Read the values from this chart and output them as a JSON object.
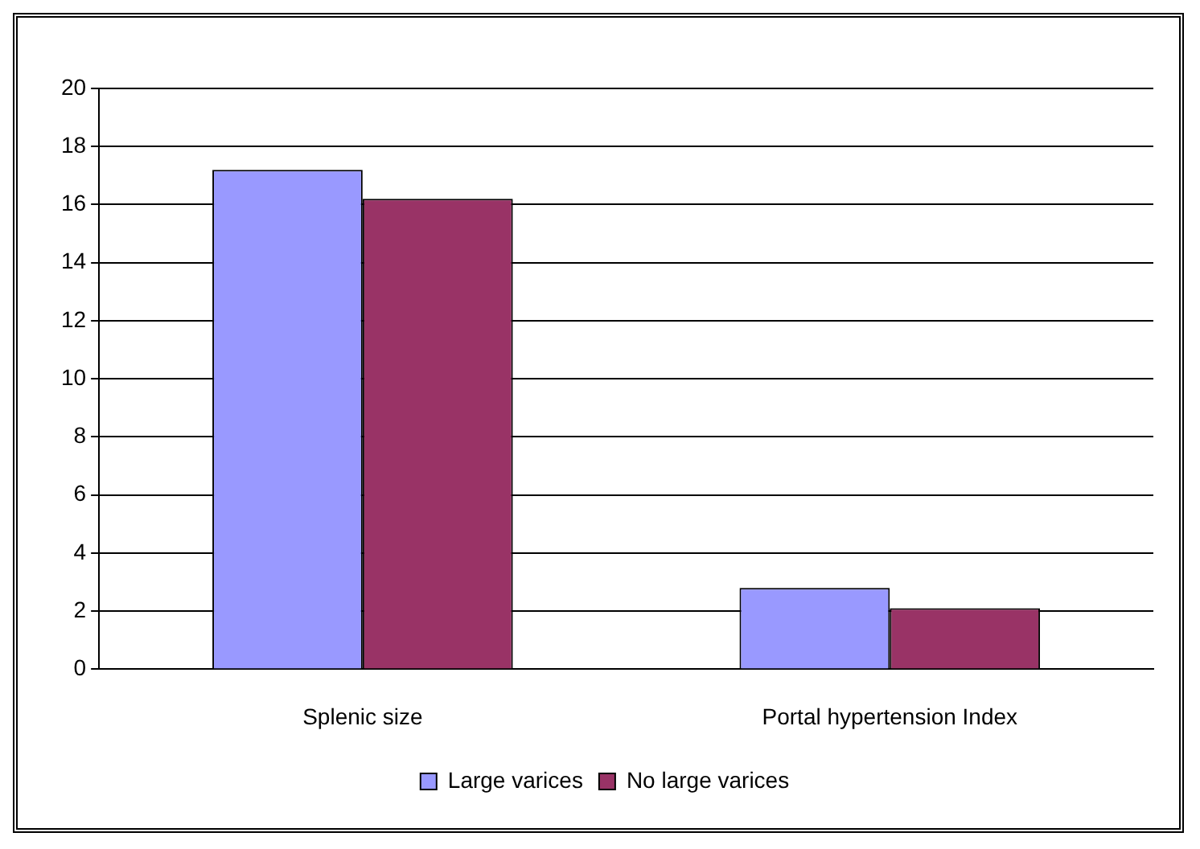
{
  "chart_data": {
    "type": "bar",
    "categories": [
      "Splenic size",
      "Portal hypertension Index"
    ],
    "series": [
      {
        "name": "Large varices",
        "color": "#9999ff",
        "values": [
          17.2,
          2.8
        ]
      },
      {
        "name": "No large varices",
        "color": "#993366",
        "values": [
          16.2,
          2.1
        ]
      }
    ],
    "ylim": [
      0,
      20
    ],
    "yticks": [
      0,
      2,
      4,
      6,
      8,
      10,
      12,
      14,
      16,
      18,
      20
    ],
    "grid": "y",
    "legend": "bottom"
  }
}
